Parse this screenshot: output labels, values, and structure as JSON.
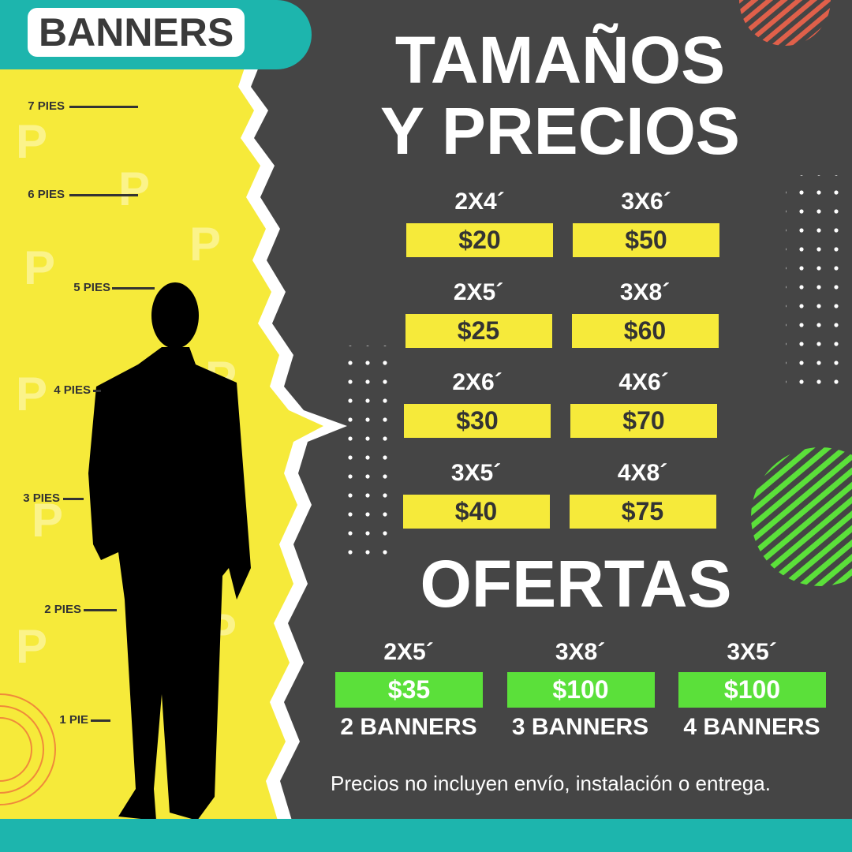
{
  "badge": "BANNERS",
  "title": [
    "TAMAÑOS",
    "Y PRECIOS"
  ],
  "height_scale": [
    "7 PIES",
    "6 PIES",
    "5 PIES",
    "4 PIES",
    "3 PIES",
    "2 PIES",
    "1 PIE"
  ],
  "prices": [
    {
      "size": "2X4´",
      "price": "$20"
    },
    {
      "size": "3X6´",
      "price": "$50"
    },
    {
      "size": "2X5´",
      "price": "$25"
    },
    {
      "size": "3X8´",
      "price": "$60"
    },
    {
      "size": "2X6´",
      "price": "$30"
    },
    {
      "size": "4X6´",
      "price": "$70"
    },
    {
      "size": "3X5´",
      "price": "$40"
    },
    {
      "size": "4X8´",
      "price": "$75"
    }
  ],
  "offers_title": "OFERTAS",
  "offers": [
    {
      "size": "2X5´",
      "price": "$35",
      "quantity": "2 BANNERS"
    },
    {
      "size": "3X8´",
      "price": "$100",
      "quantity": "3 BANNERS"
    },
    {
      "size": "3X5´",
      "price": "$100",
      "quantity": "4 BANNERS"
    }
  ],
  "note": "Precios no incluyen envío, instalación o entrega."
}
